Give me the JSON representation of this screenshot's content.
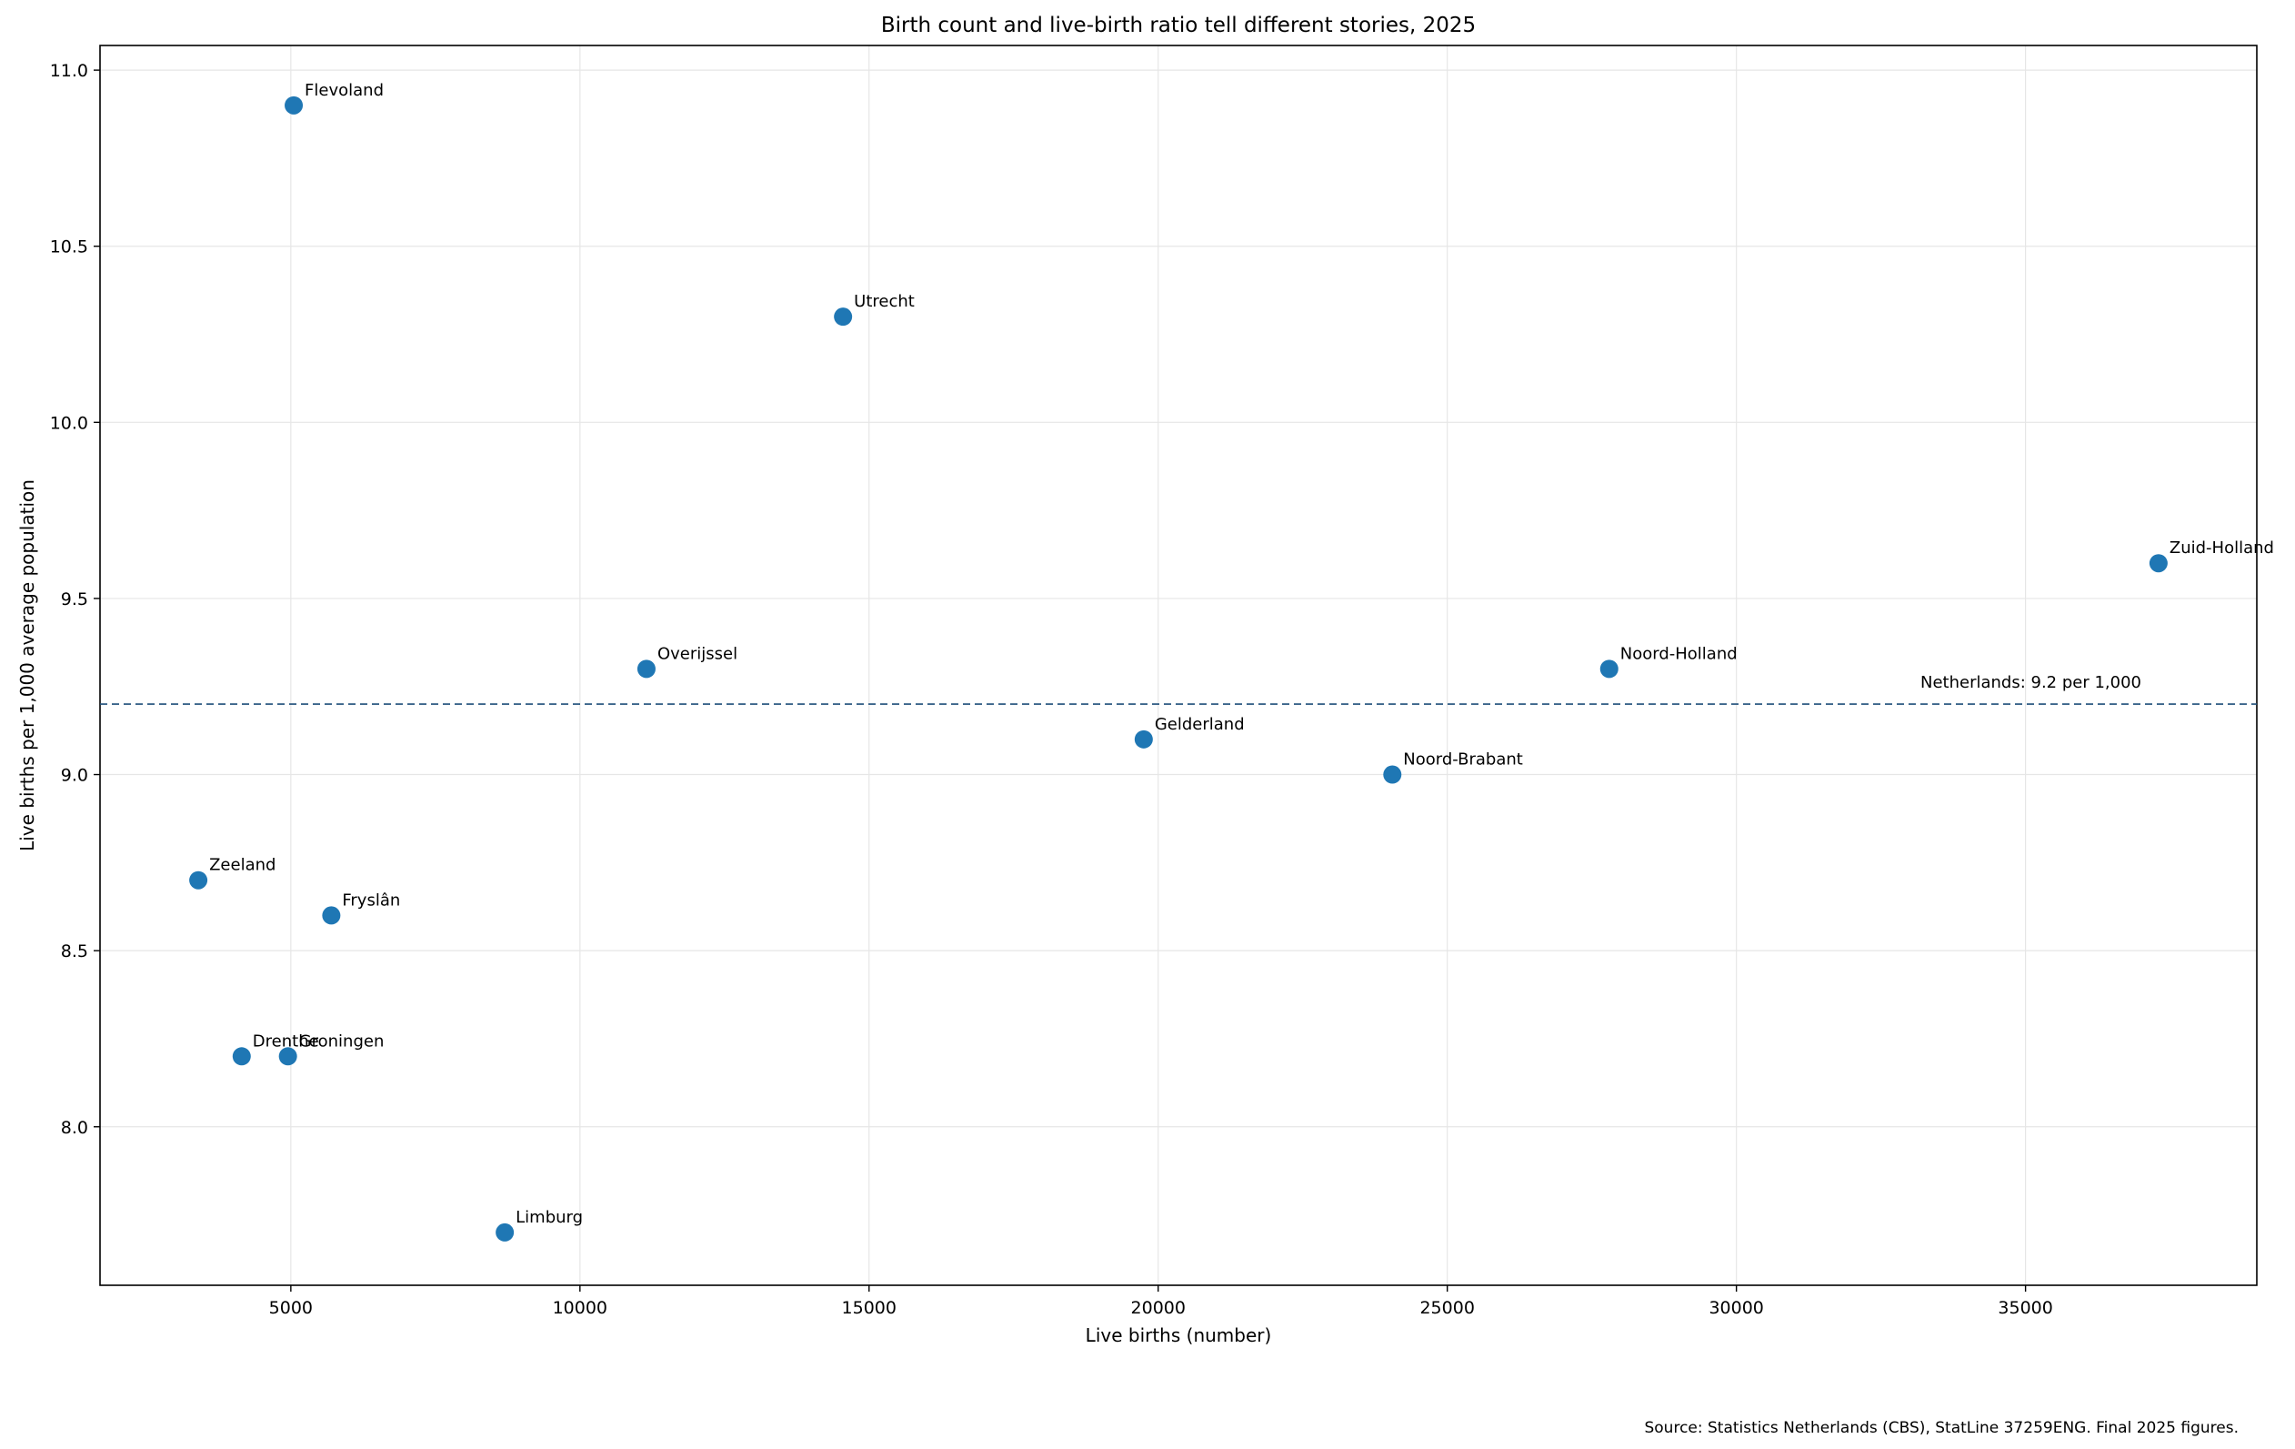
{
  "chart_data": {
    "type": "scatter",
    "title": "Birth count and live-birth ratio tell different stories, 2025",
    "xlabel": "Live births (number)",
    "ylabel": "Live births per 1,000 average population",
    "xlim": [
      1700,
      39000
    ],
    "ylim": [
      7.55,
      11.07
    ],
    "xticks": [
      5000,
      10000,
      15000,
      20000,
      25000,
      30000,
      35000
    ],
    "yticks": [
      8.0,
      8.5,
      9.0,
      9.5,
      10.0,
      10.5,
      11.0
    ],
    "grid": true,
    "color": "#1f77b4",
    "points": [
      {
        "name": "Flevoland",
        "x": 5050,
        "y": 10.9
      },
      {
        "name": "Utrecht",
        "x": 14550,
        "y": 10.3
      },
      {
        "name": "Zuid-Holland",
        "x": 37300,
        "y": 9.6
      },
      {
        "name": "Overijssel",
        "x": 11150,
        "y": 9.3
      },
      {
        "name": "Noord-Holland",
        "x": 27800,
        "y": 9.3
      },
      {
        "name": "Gelderland",
        "x": 19750,
        "y": 9.1
      },
      {
        "name": "Noord-Brabant",
        "x": 24050,
        "y": 9.0
      },
      {
        "name": "Zeeland",
        "x": 3400,
        "y": 8.7
      },
      {
        "name": "Fryslân",
        "x": 5700,
        "y": 8.6
      },
      {
        "name": "Drenthe",
        "x": 4150,
        "y": 8.2
      },
      {
        "name": "Groningen",
        "x": 4950,
        "y": 8.2
      },
      {
        "name": "Limburg",
        "x": 8700,
        "y": 7.7
      }
    ],
    "reference_line": {
      "y": 9.2,
      "label": "Netherlands: 9.2 per 1,000",
      "color": "#1f4e79"
    },
    "source": "Source: Statistics Netherlands (CBS), StatLine 37259ENG. Final 2025 figures."
  }
}
